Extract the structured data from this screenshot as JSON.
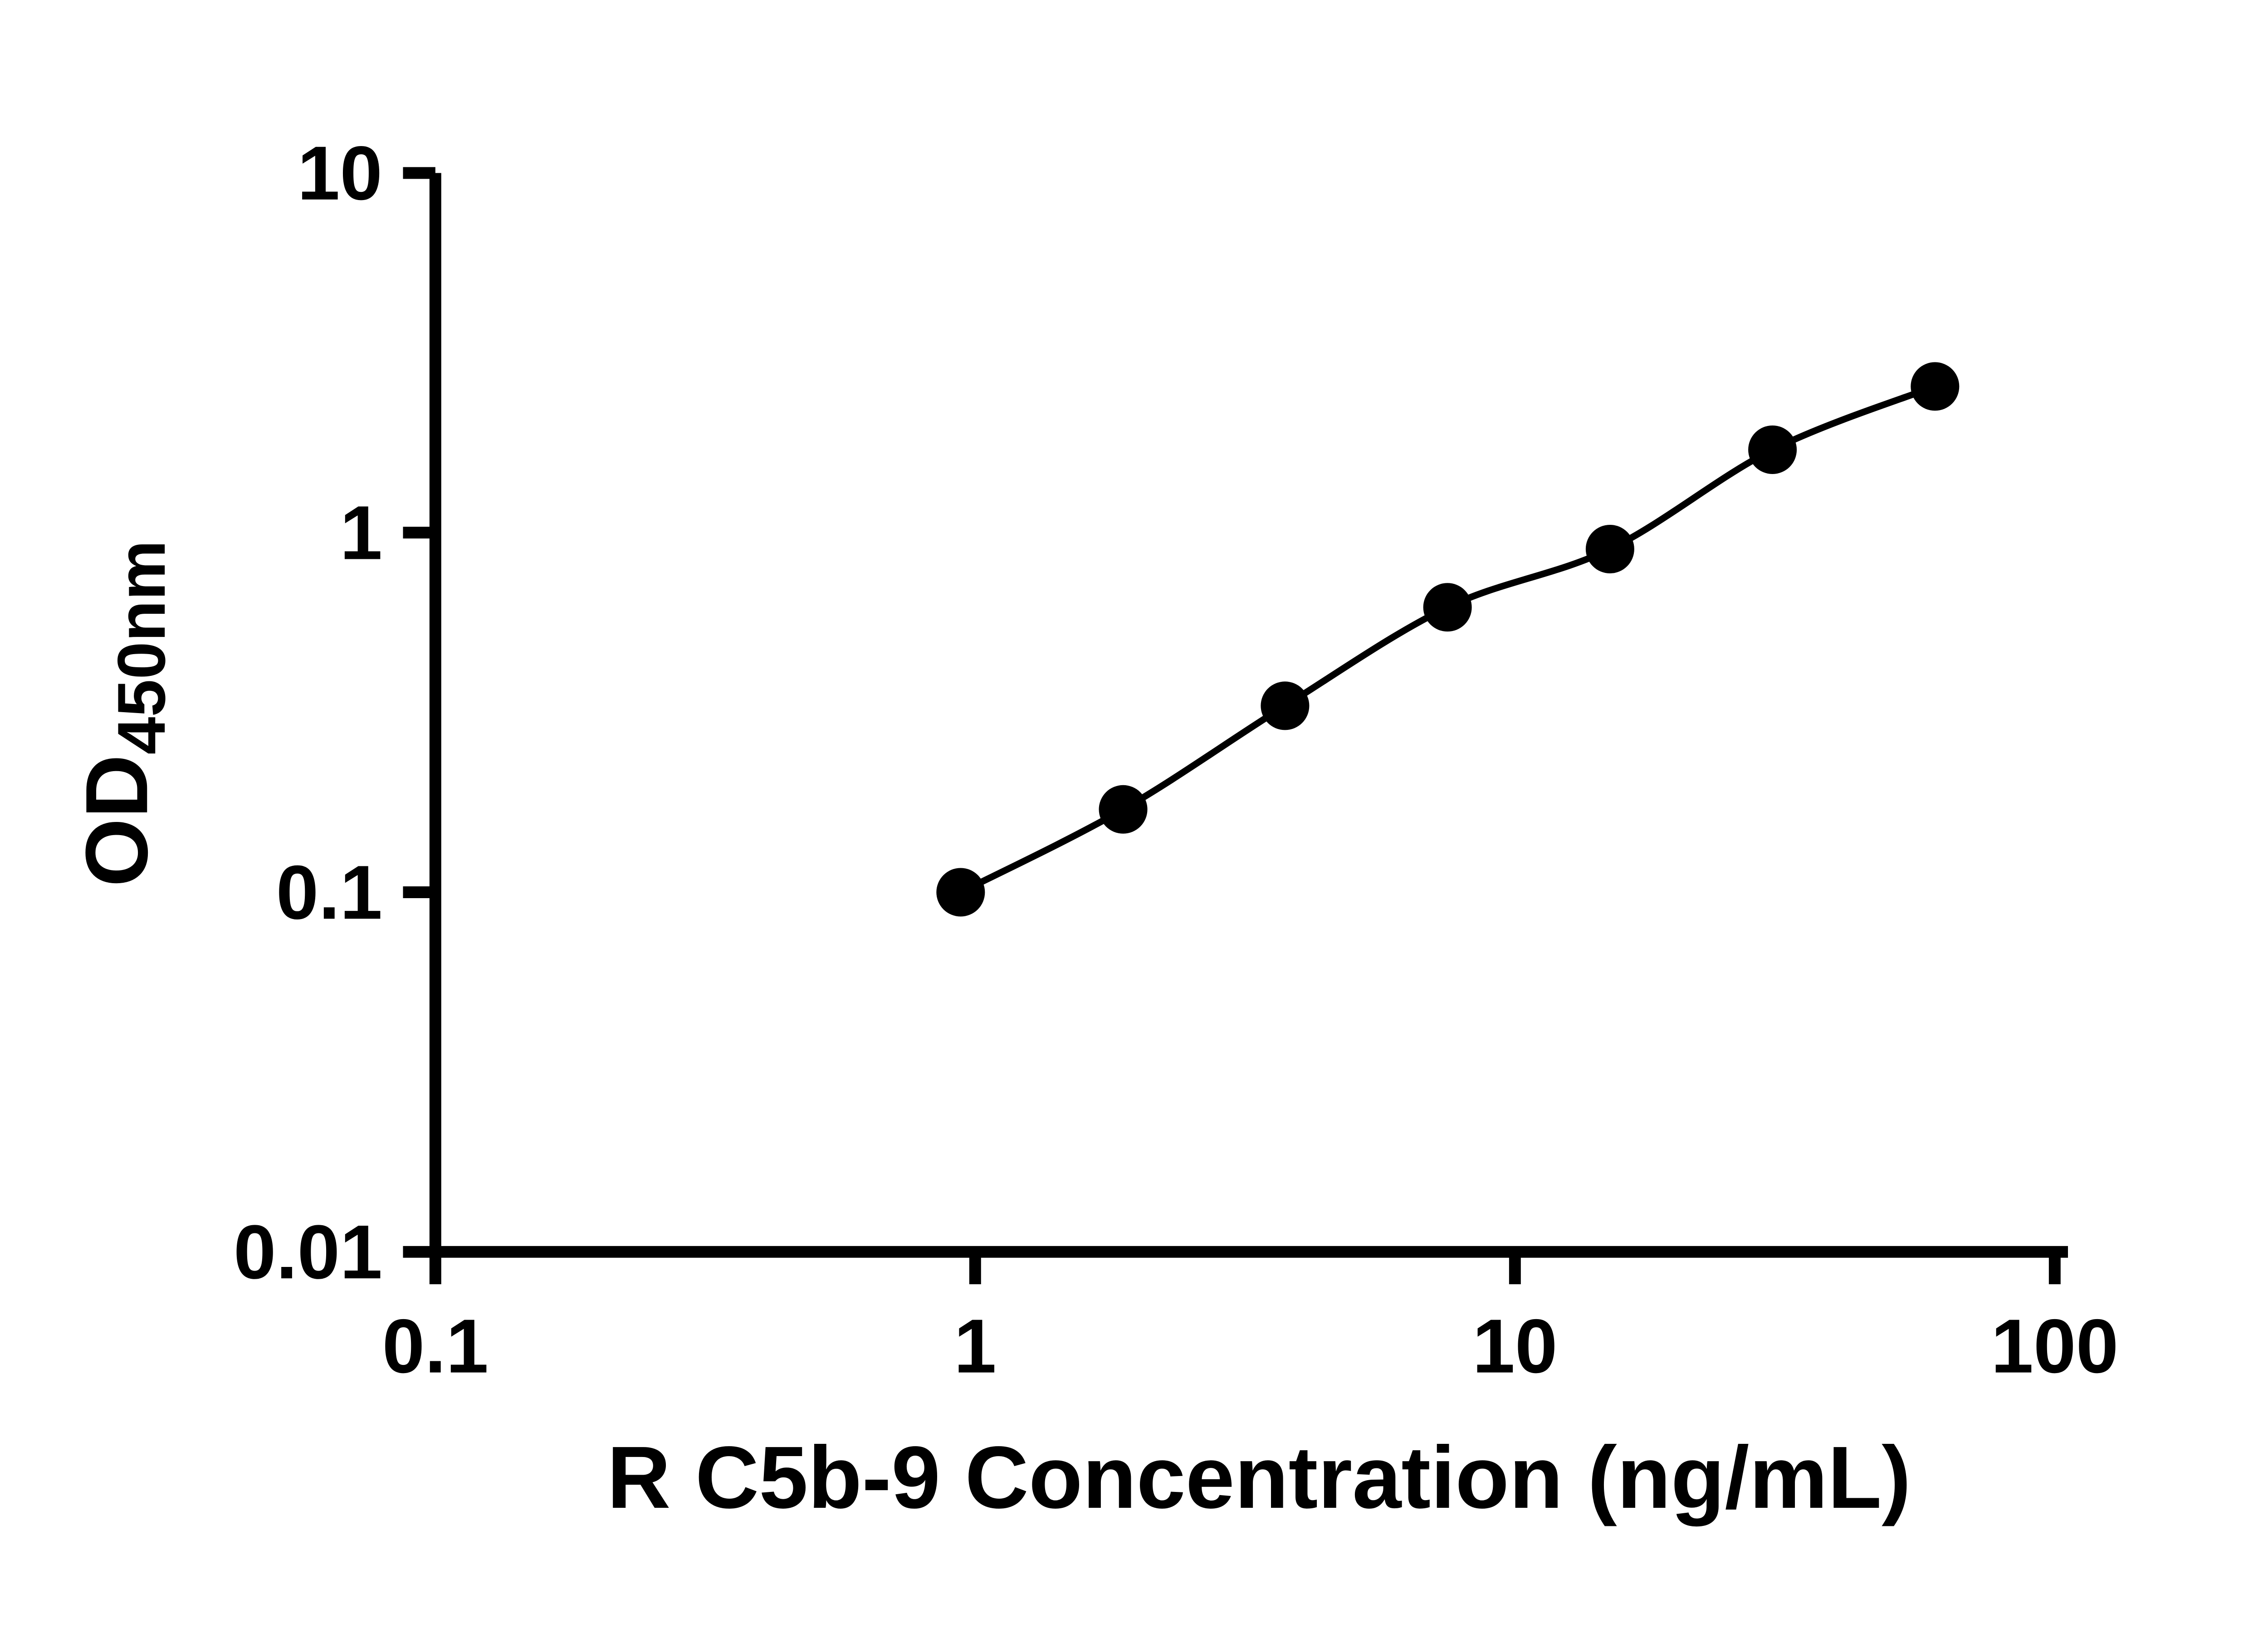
{
  "chart_data": {
    "type": "line",
    "title": "",
    "xlabel": "R C5b-9 Concentration (ng/mL)",
    "ylabel_main": "OD",
    "ylabel_sub": "450nm",
    "x": [
      0.94,
      1.88,
      3.75,
      7.5,
      15,
      30,
      60
    ],
    "y": [
      0.1,
      0.17,
      0.33,
      0.62,
      0.9,
      1.7,
      2.55
    ],
    "xscale": "log",
    "yscale": "log",
    "xlim": [
      0.1,
      100
    ],
    "ylim": [
      0.01,
      10
    ],
    "xticks": [
      "0.1",
      "1",
      "10",
      "100"
    ],
    "yticks": [
      "0.01",
      "0.1",
      "1",
      "10"
    ],
    "grid": false,
    "legend": null,
    "line_color": "#000000",
    "marker_color": "#000000",
    "background_color": "#ffffff"
  }
}
